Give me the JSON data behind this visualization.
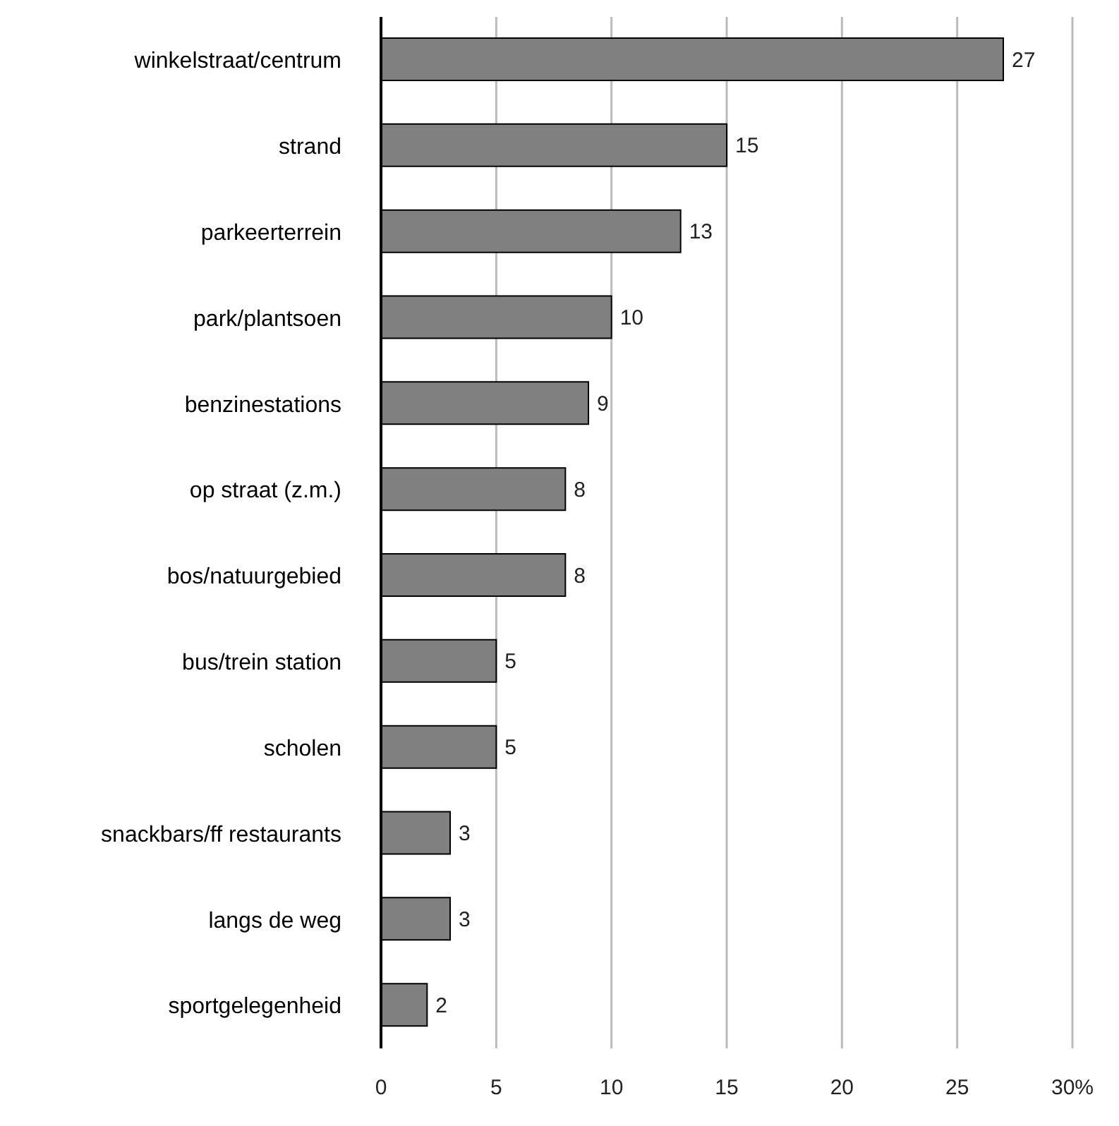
{
  "chart_data": {
    "type": "bar",
    "orientation": "horizontal",
    "categories": [
      "winkelstraat/centrum",
      "strand",
      "parkeerterrein",
      "park/plantsoen",
      "benzinestations",
      "op straat (z.m.)",
      "bos/natuurgebied",
      "bus/trein station",
      "scholen",
      "snackbars/ff restaurants",
      "langs de weg",
      "sportgelegenheid"
    ],
    "values": [
      27,
      15,
      13,
      10,
      9,
      8,
      8,
      5,
      5,
      3,
      3,
      2
    ],
    "color": "#808080",
    "xlim": [
      0,
      30
    ],
    "xticks": [
      0,
      5,
      10,
      15,
      20,
      25,
      {
        "value": 30,
        "label": "30%"
      }
    ],
    "grid": "x",
    "data_labels": true
  }
}
